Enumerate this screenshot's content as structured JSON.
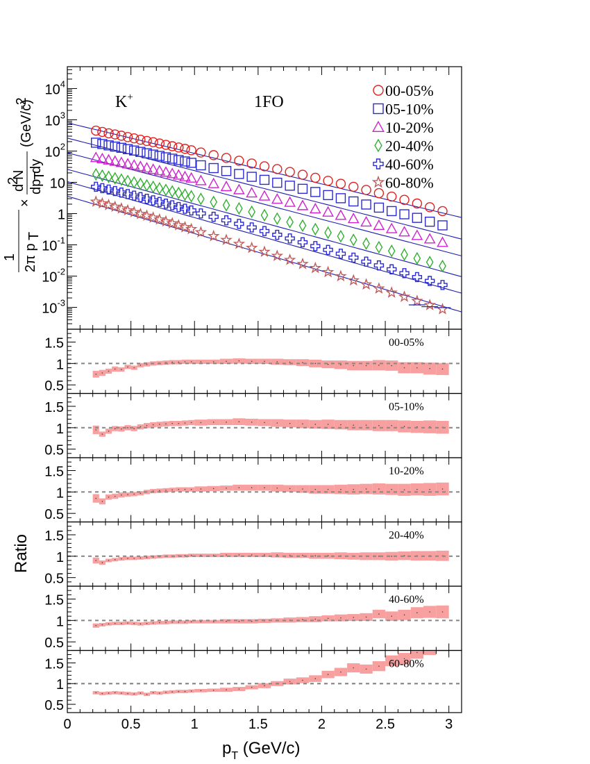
{
  "figure": {
    "particle_label_base": "K",
    "particle_label_sup": "+",
    "model_label": "1FO",
    "ratio_ylabel": "Ratio"
  },
  "chart_data": [
    {
      "type": "scatter",
      "yscale": "log",
      "ylim": [
        0.0002,
        50000
      ],
      "xlim": [
        0,
        3.1
      ],
      "ylabel": "1/(2π p_T) × d²N/(dp_T dy) (GeV/c)^-2",
      "y_ticks": [
        {
          "value": 0.001,
          "base": "10",
          "exp": "-3"
        },
        {
          "value": 0.01,
          "base": "10",
          "exp": "-2"
        },
        {
          "value": 0.1,
          "base": "10",
          "exp": "-1"
        },
        {
          "value": 1,
          "base": "1",
          "exp": ""
        },
        {
          "value": 10,
          "base": "10",
          "exp": ""
        },
        {
          "value": 100,
          "base": "10",
          "exp": "2"
        },
        {
          "value": 1000,
          "base": "10",
          "exp": "3"
        },
        {
          "value": 10000,
          "base": "10",
          "exp": "4"
        }
      ],
      "legend_position": "top-right",
      "x": [
        0.225,
        0.275,
        0.325,
        0.375,
        0.425,
        0.475,
        0.525,
        0.575,
        0.625,
        0.675,
        0.725,
        0.775,
        0.825,
        0.875,
        0.925,
        0.975,
        1.05,
        1.15,
        1.25,
        1.35,
        1.45,
        1.55,
        1.65,
        1.75,
        1.85,
        1.95,
        2.05,
        2.15,
        2.25,
        2.35,
        2.45,
        2.55,
        2.65,
        2.75,
        2.85,
        2.95
      ],
      "series": [
        {
          "name": "00-05%",
          "marker": "circle",
          "color": "#e02020",
          "values": [
            450,
            410,
            370,
            340,
            310,
            280,
            255,
            230,
            210,
            192,
            175,
            158,
            143,
            130,
            118,
            106,
            90,
            74,
            60,
            49,
            40,
            32.5,
            26.5,
            21.5,
            17.5,
            14,
            11.2,
            9,
            7.2,
            5.7,
            4.5,
            3.5,
            2.75,
            2.1,
            1.6,
            1.2
          ]
        },
        {
          "name": "05-10%",
          "marker": "square",
          "color": "#2a2ad0",
          "values": [
            185,
            168,
            152,
            139,
            127,
            115,
            104,
            94,
            85,
            77,
            70,
            63,
            57,
            51.5,
            46.5,
            42,
            35,
            28.5,
            23,
            18.5,
            15,
            12,
            9.7,
            7.8,
            6.2,
            4.9,
            3.9,
            3.1,
            2.45,
            1.95,
            1.55,
            1.2,
            0.95,
            0.73,
            0.55,
            0.42
          ]
        },
        {
          "name": "10-20%",
          "marker": "triangle",
          "color": "#d020d0",
          "values": [
            62,
            57,
            52,
            47.5,
            43,
            39,
            35.5,
            32,
            29,
            26,
            23.5,
            21.2,
            19,
            17,
            15.2,
            13.7,
            11.3,
            9.1,
            7.3,
            5.8,
            4.6,
            3.65,
            2.9,
            2.3,
            1.8,
            1.42,
            1.12,
            0.88,
            0.69,
            0.54,
            0.42,
            0.33,
            0.26,
            0.2,
            0.155,
            0.12
          ]
        },
        {
          "name": "20-40%",
          "marker": "diamond",
          "color": "#30b030",
          "values": [
            18,
            16.4,
            14.9,
            13.5,
            12.2,
            11,
            9.9,
            8.9,
            8,
            7.15,
            6.4,
            5.7,
            5.1,
            4.55,
            4.05,
            3.6,
            2.95,
            2.35,
            1.86,
            1.46,
            1.14,
            0.89,
            0.69,
            0.535,
            0.413,
            0.318,
            0.245,
            0.188,
            0.144,
            0.11,
            0.084,
            0.064,
            0.049,
            0.037,
            0.028,
            0.021
          ]
        },
        {
          "name": "40-60%",
          "marker": "cross",
          "color": "#2a2ad0",
          "values": [
            7.2,
            6.5,
            5.85,
            5.25,
            4.7,
            4.2,
            3.75,
            3.35,
            2.98,
            2.65,
            2.35,
            2.08,
            1.84,
            1.62,
            1.43,
            1.26,
            1.01,
            0.79,
            0.61,
            0.47,
            0.36,
            0.276,
            0.21,
            0.16,
            0.121,
            0.091,
            0.069,
            0.052,
            0.039,
            0.029,
            0.022,
            0.0165,
            0.0124,
            0.0093,
            0.007,
            0.0052
          ]
        },
        {
          "name": "60-80%",
          "marker": "star",
          "color": "#c05a5a",
          "values": [
            2.4,
            2.12,
            1.87,
            1.65,
            1.45,
            1.27,
            1.11,
            0.97,
            0.85,
            0.74,
            0.645,
            0.56,
            0.487,
            0.423,
            0.367,
            0.318,
            0.252,
            0.19,
            0.143,
            0.107,
            0.08,
            0.0596,
            0.0443,
            0.0329,
            0.0244,
            0.0181,
            0.0134,
            0.0099,
            0.0073,
            0.0054,
            0.004,
            0.00295,
            0.00218,
            0.0016,
            0.00118,
            0.00087
          ]
        }
      ],
      "fit_lines": [
        {
          "for": "00-05%",
          "a": 800,
          "b": 2.25
        },
        {
          "for": "05-10%",
          "a": 260,
          "b": 2.4
        },
        {
          "for": "10-20%",
          "a": 88,
          "b": 2.45
        },
        {
          "for": "20-40%",
          "a": 26,
          "b": 2.55
        },
        {
          "for": "40-60%",
          "a": 10.5,
          "b": 2.65
        },
        {
          "for": "60-80%",
          "a": 3.6,
          "b": 2.75
        }
      ],
      "extra_markers": {
        "series": "40-60%",
        "x": [
          2.75,
          2.85,
          2.95
        ],
        "values": [
          0.0012,
          0.00105,
          0.00098
        ]
      }
    },
    {
      "type": "area",
      "xlabel_base": "p",
      "xlabel_sub": "T",
      "xlabel_unit": " (GeV/c)",
      "xlim": [
        0,
        3.1
      ],
      "ylim": [
        0.3,
        1.8
      ],
      "x_ticks": [
        "0",
        "0.5",
        "1",
        "1.5",
        "2",
        "2.5",
        "3"
      ],
      "y_ticks": [
        "0.5",
        "1",
        "1.5"
      ],
      "reference": 1,
      "x": [
        0.225,
        0.275,
        0.325,
        0.375,
        0.425,
        0.475,
        0.525,
        0.575,
        0.625,
        0.675,
        0.725,
        0.775,
        0.825,
        0.875,
        0.925,
        0.975,
        1.05,
        1.15,
        1.25,
        1.35,
        1.45,
        1.55,
        1.65,
        1.75,
        1.85,
        1.95,
        2.05,
        2.15,
        2.25,
        2.35,
        2.45,
        2.55,
        2.65,
        2.75,
        2.85,
        2.95
      ],
      "panels": [
        {
          "label": "00-05%",
          "values": [
            0.75,
            0.78,
            0.82,
            0.87,
            0.86,
            0.92,
            0.9,
            0.96,
            0.98,
            1,
            1.01,
            1.02,
            1.03,
            1.03,
            1.04,
            1.04,
            1.04,
            1.04,
            1.05,
            1.06,
            1.05,
            1.05,
            1.04,
            1.03,
            1.02,
            1,
            0.98,
            0.97,
            0.95,
            0.95,
            0.96,
            0.95,
            0.9,
            0.9,
            0.88,
            0.87
          ],
          "errors": [
            0.08,
            0.07,
            0.06,
            0.06,
            0.05,
            0.05,
            0.05,
            0.05,
            0.05,
            0.05,
            0.05,
            0.05,
            0.05,
            0.05,
            0.05,
            0.05,
            0.05,
            0.05,
            0.06,
            0.06,
            0.06,
            0.06,
            0.07,
            0.07,
            0.08,
            0.09,
            0.09,
            0.1,
            0.11,
            0.11,
            0.12,
            0.12,
            0.13,
            0.13,
            0.14,
            0.14
          ]
        },
        {
          "label": "05-10%",
          "values": [
            0.95,
            0.85,
            0.92,
            0.98,
            0.97,
            1,
            0.98,
            1.02,
            1.05,
            1.07,
            1.08,
            1.09,
            1.1,
            1.1,
            1.11,
            1.12,
            1.12,
            1.13,
            1.13,
            1.14,
            1.13,
            1.12,
            1.11,
            1.1,
            1.09,
            1.08,
            1.08,
            1.07,
            1.06,
            1.06,
            1.05,
            1.05,
            1.03,
            1.02,
            1.02,
            1.01
          ],
          "errors": [
            0.1,
            0.06,
            0.06,
            0.06,
            0.06,
            0.06,
            0.06,
            0.06,
            0.06,
            0.06,
            0.06,
            0.06,
            0.06,
            0.06,
            0.06,
            0.06,
            0.07,
            0.07,
            0.07,
            0.08,
            0.08,
            0.08,
            0.09,
            0.09,
            0.1,
            0.1,
            0.11,
            0.11,
            0.12,
            0.12,
            0.13,
            0.13,
            0.14,
            0.14,
            0.15,
            0.15
          ]
        },
        {
          "label": "10-20%",
          "values": [
            0.85,
            0.78,
            0.88,
            0.9,
            0.93,
            0.94,
            0.95,
            0.97,
            1,
            1.02,
            1.03,
            1.04,
            1.05,
            1.06,
            1.06,
            1.06,
            1.07,
            1.08,
            1.09,
            1.1,
            1.1,
            1.1,
            1.09,
            1.08,
            1.07,
            1.06,
            1.06,
            1.06,
            1.06,
            1.07,
            1.07,
            1.06,
            1.05,
            1.06,
            1.06,
            1.07
          ],
          "errors": [
            0.1,
            0.07,
            0.06,
            0.06,
            0.06,
            0.05,
            0.05,
            0.05,
            0.05,
            0.05,
            0.05,
            0.05,
            0.05,
            0.05,
            0.05,
            0.05,
            0.06,
            0.06,
            0.06,
            0.07,
            0.07,
            0.07,
            0.08,
            0.08,
            0.09,
            0.1,
            0.1,
            0.11,
            0.12,
            0.12,
            0.13,
            0.13,
            0.14,
            0.14,
            0.15,
            0.15
          ]
        },
        {
          "label": "20-40%",
          "values": [
            0.9,
            0.85,
            0.9,
            0.92,
            0.94,
            0.95,
            0.95,
            0.96,
            0.97,
            0.98,
            0.99,
            1,
            1,
            1.01,
            1.01,
            1.02,
            1.02,
            1.02,
            1.03,
            1.03,
            1.03,
            1.03,
            1.03,
            1.02,
            1.02,
            1.01,
            1.01,
            1.01,
            1,
            1,
            1,
            1,
            1.01,
            1.01,
            1.01,
            1.01
          ],
          "errors": [
            0.07,
            0.05,
            0.04,
            0.04,
            0.04,
            0.04,
            0.04,
            0.04,
            0.04,
            0.04,
            0.04,
            0.04,
            0.04,
            0.04,
            0.04,
            0.04,
            0.04,
            0.04,
            0.05,
            0.05,
            0.05,
            0.05,
            0.06,
            0.06,
            0.06,
            0.07,
            0.07,
            0.08,
            0.08,
            0.09,
            0.09,
            0.1,
            0.1,
            0.11,
            0.11,
            0.12
          ]
        },
        {
          "label": "40-60%",
          "values": [
            0.88,
            0.9,
            0.92,
            0.93,
            0.93,
            0.94,
            0.93,
            0.92,
            0.93,
            0.94,
            0.95,
            0.95,
            0.96,
            0.96,
            0.96,
            0.97,
            0.97,
            0.97,
            0.98,
            0.98,
            0.98,
            0.99,
            1,
            1.01,
            1.02,
            1.03,
            1.05,
            1.06,
            1.07,
            1.08,
            1.15,
            1.1,
            1.13,
            1.18,
            1.2,
            1.2
          ],
          "errors": [
            0.05,
            0.04,
            0.04,
            0.04,
            0.04,
            0.04,
            0.04,
            0.04,
            0.04,
            0.04,
            0.04,
            0.04,
            0.04,
            0.04,
            0.04,
            0.04,
            0.04,
            0.04,
            0.05,
            0.05,
            0.05,
            0.05,
            0.05,
            0.06,
            0.06,
            0.07,
            0.07,
            0.08,
            0.08,
            0.09,
            0.1,
            0.11,
            0.12,
            0.13,
            0.14,
            0.15
          ]
        },
        {
          "label": "60-80%",
          "values": [
            0.78,
            0.76,
            0.77,
            0.78,
            0.77,
            0.76,
            0.75,
            0.77,
            0.74,
            0.78,
            0.77,
            0.79,
            0.8,
            0.81,
            0.81,
            0.82,
            0.83,
            0.84,
            0.85,
            0.87,
            0.91,
            0.95,
            1,
            1.05,
            1.08,
            1.12,
            1.22,
            1.28,
            1.38,
            1.35,
            1.42,
            1.55,
            1.6,
            1.75,
            1.85,
            1.95
          ],
          "errors": [
            0.04,
            0.04,
            0.04,
            0.04,
            0.04,
            0.04,
            0.04,
            0.04,
            0.04,
            0.04,
            0.04,
            0.04,
            0.04,
            0.04,
            0.04,
            0.04,
            0.04,
            0.04,
            0.05,
            0.05,
            0.05,
            0.06,
            0.06,
            0.07,
            0.07,
            0.08,
            0.09,
            0.1,
            0.11,
            0.11,
            0.12,
            0.13,
            0.14,
            0.15,
            0.16,
            0.17
          ]
        }
      ]
    }
  ]
}
